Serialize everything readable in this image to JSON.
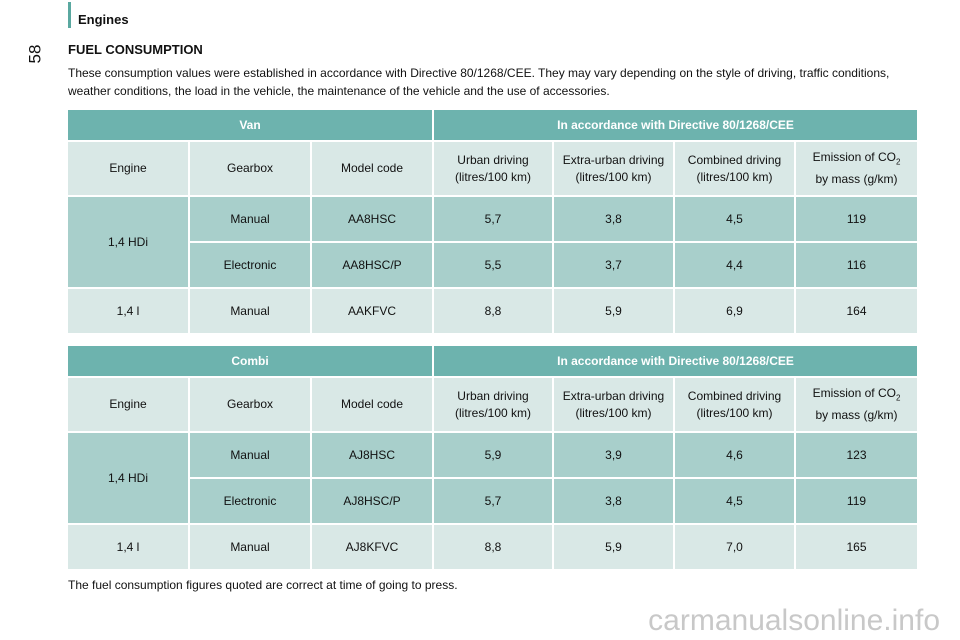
{
  "header": {
    "page_number": "58",
    "section": "Engines"
  },
  "title": "FUEL CONSUMPTION",
  "intro": "These consumption values were established in accordance with Directive 80/1268/CEE. They may vary depending on the style of driving, traffic conditions, weather conditions, the load in the vehicle, the maintenance of the vehicle and the use of accessories.",
  "tables": [
    {
      "vehicle": "Van",
      "directive": "In accordance with Directive 80/1268/CEE",
      "columns": [
        "Engine",
        "Gearbox",
        "Model code",
        "Urban driving\n(litres/100 km)",
        "Extra-urban driving\n(litres/100 km)",
        "Combined driving\n(litres/100 km)"
      ],
      "emission_column": {
        "text": "Emission of CO",
        "subscript": "2",
        "second_line": "by mass (g/km)"
      },
      "groups": [
        {
          "engine": "1,4 HDi",
          "rows": [
            [
              "Manual",
              "AA8HSC",
              "5,7",
              "3,8",
              "4,5",
              "119"
            ],
            [
              "Electronic",
              "AA8HSC/P",
              "5,5",
              "3,7",
              "4,4",
              "116"
            ]
          ]
        },
        {
          "engine": "1,4 l",
          "rows": [
            [
              "Manual",
              "AAKFVC",
              "8,8",
              "5,9",
              "6,9",
              "164"
            ]
          ]
        }
      ]
    },
    {
      "vehicle": "Combi",
      "directive": "In accordance with Directive 80/1268/CEE",
      "columns": [
        "Engine",
        "Gearbox",
        "Model code",
        "Urban driving\n(litres/100 km)",
        "Extra-urban driving\n(litres/100 km)",
        "Combined driving\n(litres/100 km)"
      ],
      "emission_column": {
        "text": "Emission of CO",
        "subscript": "2",
        "second_line": "by mass (g/km)"
      },
      "groups": [
        {
          "engine": "1,4 HDi",
          "rows": [
            [
              "Manual",
              "AJ8HSC",
              "5,9",
              "3,9",
              "4,6",
              "123"
            ],
            [
              "Electronic",
              "AJ8HSC/P",
              "5,7",
              "3,8",
              "4,5",
              "119"
            ]
          ]
        },
        {
          "engine": "1,4 l",
          "rows": [
            [
              "Manual",
              "AJ8KFVC",
              "8,8",
              "5,9",
              "7,0",
              "165"
            ]
          ]
        }
      ]
    }
  ],
  "footnote": "The fuel consumption figures quoted are correct at time of going to press.",
  "watermark": "carmanualsonline.info"
}
